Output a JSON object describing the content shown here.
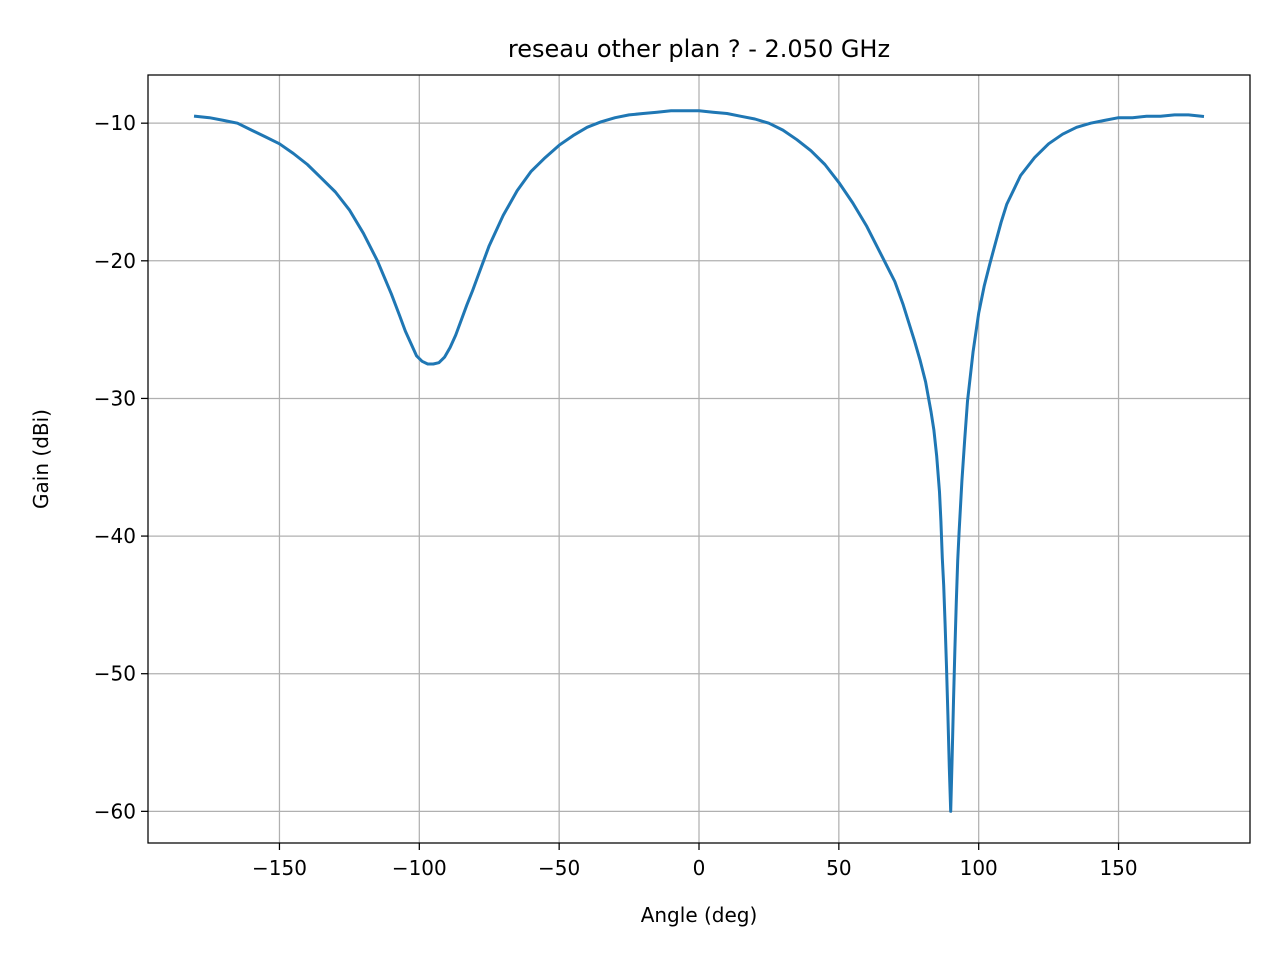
{
  "chart_data": {
    "type": "line",
    "title": "reseau other plan ? - 2.050 GHz",
    "xlabel": "Angle (deg)",
    "ylabel": "Gain (dBi)",
    "xlim": [
      -197,
      197
    ],
    "ylim": [
      -62.3,
      -6.5
    ],
    "xticks": [
      -150,
      -100,
      -50,
      0,
      50,
      100,
      150
    ],
    "xtick_labels": [
      "−150",
      "−100",
      "−50",
      "0",
      "50",
      "100",
      "150"
    ],
    "yticks": [
      -10,
      -20,
      -30,
      -40,
      -50,
      -60
    ],
    "ytick_labels": [
      "−10",
      "−20",
      "−30",
      "−40",
      "−50",
      "−60"
    ],
    "grid": true,
    "legend": "none",
    "series": [
      {
        "color": "#1f77b4",
        "x": [
          -180,
          -175,
          -170,
          -165,
          -160,
          -155,
          -150,
          -145,
          -140,
          -135,
          -130,
          -125,
          -120,
          -115,
          -110,
          -107,
          -105,
          -103,
          -101,
          -99,
          -97,
          -95,
          -93,
          -91,
          -89,
          -87,
          -85,
          -83,
          -81,
          -79,
          -77,
          -75,
          -70,
          -65,
          -60,
          -55,
          -50,
          -45,
          -40,
          -35,
          -30,
          -25,
          -20,
          -15,
          -10,
          -5,
          0,
          5,
          10,
          15,
          20,
          25,
          30,
          35,
          40,
          45,
          50,
          55,
          60,
          65,
          70,
          73,
          75,
          77,
          79,
          81,
          83,
          84,
          85,
          86,
          86.5,
          87,
          87.5,
          88,
          88.5,
          89,
          89.5,
          90,
          90.5,
          91,
          91.5,
          92,
          92.5,
          93,
          94,
          95,
          96,
          97,
          98,
          100,
          102,
          104,
          106,
          108,
          110,
          115,
          120,
          125,
          130,
          135,
          140,
          145,
          150,
          155,
          160,
          165,
          170,
          175,
          180
        ],
        "y": [
          -9.5,
          -9.6,
          -9.8,
          -10.0,
          -10.5,
          -11.0,
          -11.5,
          -12.2,
          -13.0,
          -14.0,
          -15.0,
          -16.3,
          -18.0,
          -20.0,
          -22.4,
          -24.0,
          -25.1,
          -26.0,
          -26.9,
          -27.3,
          -27.5,
          -27.5,
          -27.4,
          -27.0,
          -26.3,
          -25.4,
          -24.3,
          -23.2,
          -22.2,
          -21.1,
          -20.0,
          -18.9,
          -16.7,
          -14.9,
          -13.5,
          -12.5,
          -11.6,
          -10.9,
          -10.3,
          -9.9,
          -9.6,
          -9.4,
          -9.3,
          -9.2,
          -9.1,
          -9.1,
          -9.1,
          -9.2,
          -9.3,
          -9.5,
          -9.7,
          -10.0,
          -10.5,
          -11.2,
          -12.0,
          -13.0,
          -14.3,
          -15.8,
          -17.5,
          -19.5,
          -21.5,
          -23.2,
          -24.5,
          -25.8,
          -27.2,
          -28.8,
          -31.0,
          -32.3,
          -34.2,
          -36.8,
          -38.9,
          -41.6,
          -43.6,
          -46.4,
          -49.5,
          -53.0,
          -56.8,
          -60.0,
          -56.2,
          -52.0,
          -48.2,
          -44.8,
          -41.8,
          -39.7,
          -36.0,
          -33.0,
          -30.2,
          -28.4,
          -26.6,
          -23.8,
          -21.8,
          -20.2,
          -18.7,
          -17.2,
          -15.9,
          -13.8,
          -12.5,
          -11.5,
          -10.8,
          -10.3,
          -10.0,
          -9.8,
          -9.6,
          -9.6,
          -9.5,
          -9.5,
          -9.4,
          -9.4,
          -9.5
        ]
      }
    ]
  }
}
